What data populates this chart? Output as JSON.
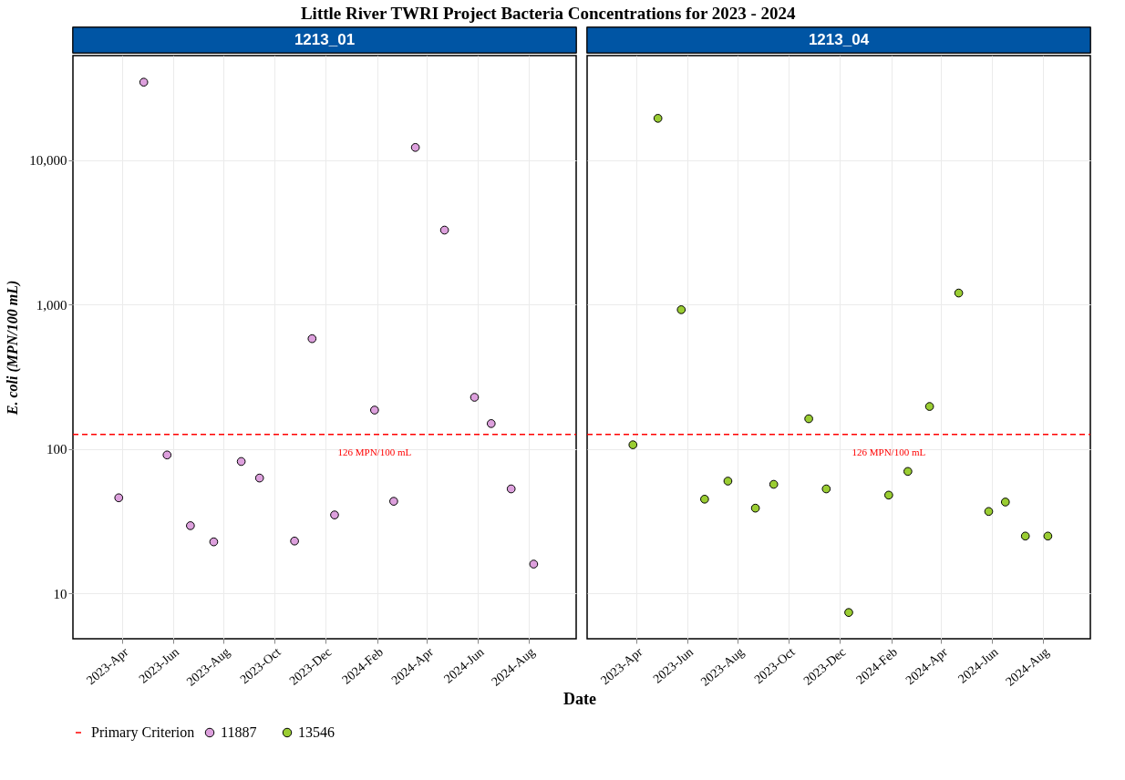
{
  "chart_data": [
    {
      "type": "scatter",
      "title": "Little River TWRI Project Bacteria Concentrations for 2023 - 2024",
      "subtitle": "1213_01",
      "xlabel": "Date",
      "ylabel": "E. coli (MPN/100 mL)",
      "series": [
        {
          "name": "11887",
          "color": "#dda0dd",
          "marker": "circle",
          "x": [
            "2023-03-28",
            "2023-04-27",
            "2023-05-25",
            "2023-06-22",
            "2023-07-20",
            "2023-08-22",
            "2023-09-13",
            "2023-10-25",
            "2023-11-15",
            "2023-12-12",
            "2024-01-29",
            "2024-02-21",
            "2024-03-18",
            "2024-04-22",
            "2024-05-28",
            "2024-06-17",
            "2024-07-11",
            "2024-08-07"
          ],
          "values": [
            46,
            34500,
            91,
            29.5,
            22.8,
            82,
            63,
            23.1,
            580,
            35,
            186,
            43.5,
            12200,
            3270,
            228,
            150,
            53,
            16
          ]
        },
        {
          "name": "Primary Criterion",
          "type": "line",
          "marker": "none",
          "line_style": "dashed",
          "color": "#ff0000",
          "x": [
            "2023-02-01",
            "2024-09-27"
          ],
          "values": [
            126,
            126
          ]
        }
      ],
      "annotations": [
        {
          "text": "126 MPN/100 mL",
          "x": "2024-01-29",
          "y": 126
        }
      ],
      "xlim": [
        "2023-02-01",
        "2024-09-27"
      ],
      "xticks": [
        {
          "value": "2023-04",
          "label": "2023-Apr"
        },
        {
          "value": "2023-06",
          "label": "2023-Jun"
        },
        {
          "value": "2023-08",
          "label": "2023-Aug"
        },
        {
          "value": "2023-10",
          "label": "2023-Oct"
        },
        {
          "value": "2023-12",
          "label": "2023-Dec"
        },
        {
          "value": "2024-02",
          "label": "2024-Feb"
        },
        {
          "value": "2024-04",
          "label": "2024-Apr"
        },
        {
          "value": "2024-06",
          "label": "2024-Jun"
        },
        {
          "value": "2024-08",
          "label": "2024-Aug"
        }
      ],
      "ylim": [
        4.87,
        52700
      ],
      "log": true,
      "yticks": [
        10,
        100,
        {
          "value": 1000,
          "label": "1,000"
        },
        {
          "value": 10000,
          "label": "10,000"
        }
      ],
      "grid": true,
      "legend": "bottom"
    },
    {
      "type": "scatter",
      "subtitle": "1213_04",
      "series": [
        {
          "name": "13546",
          "color": "#9acd32",
          "marker": "circle",
          "x": [
            "2023-03-28",
            "2023-04-27",
            "2023-05-25",
            "2023-06-22",
            "2023-07-20",
            "2023-08-22",
            "2023-09-13",
            "2023-10-25",
            "2023-11-15",
            "2023-12-12",
            "2024-01-29",
            "2024-02-21",
            "2024-03-18",
            "2024-04-22",
            "2024-05-28",
            "2024-06-17",
            "2024-07-11",
            "2024-08-07"
          ],
          "values": [
            107,
            19400,
            920,
            45,
            60,
            39,
            57,
            162,
            53,
            7.4,
            48,
            70,
            197,
            1200,
            37,
            43,
            25,
            25
          ]
        },
        {
          "name": "Primary Criterion",
          "type": "line",
          "marker": "none",
          "line_style": "dashed",
          "color": "#ff0000",
          "x": [
            "2023-02-01",
            "2024-09-27"
          ],
          "values": [
            126,
            126
          ]
        }
      ],
      "annotations": [
        {
          "text": "126 MPN/100 mL",
          "x": "2024-01-29",
          "y": 126
        }
      ],
      "xlim": [
        "2023-02-01",
        "2024-09-27"
      ],
      "xticks": [
        {
          "value": "2023-04",
          "label": "2023-Apr"
        },
        {
          "value": "2023-06",
          "label": "2023-Jun"
        },
        {
          "value": "2023-08",
          "label": "2023-Aug"
        },
        {
          "value": "2023-10",
          "label": "2023-Oct"
        },
        {
          "value": "2023-12",
          "label": "2023-Dec"
        },
        {
          "value": "2024-02",
          "label": "2024-Feb"
        },
        {
          "value": "2024-04",
          "label": "2024-Apr"
        },
        {
          "value": "2024-06",
          "label": "2024-Jun"
        },
        {
          "value": "2024-08",
          "label": "2024-Aug"
        }
      ],
      "ylim": [
        4.87,
        52700
      ],
      "log": true,
      "yticks": [
        10,
        100,
        1000,
        10000
      ],
      "tick_labels": "x",
      "grid": true,
      "legend": "bottom"
    }
  ]
}
